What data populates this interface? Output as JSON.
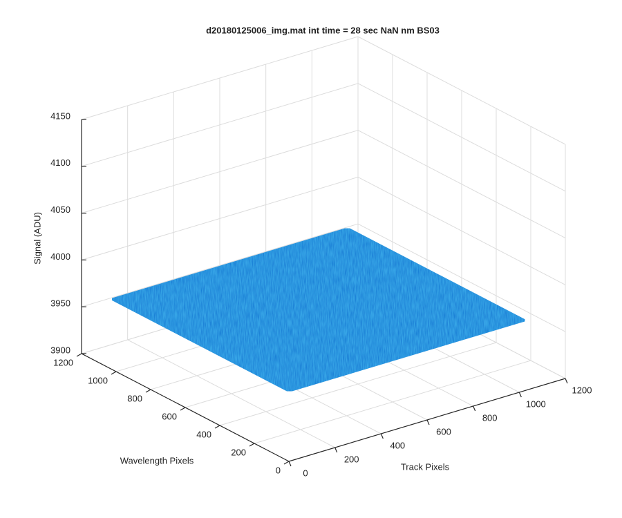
{
  "chart_data": {
    "type": "surface3d",
    "title": "d20180125006_img.mat int time = 28 sec  NaN nm BS03",
    "xlabel": "Track Pixels",
    "ylabel": "Wavelength Pixels",
    "zlabel": "Signal (ADU)",
    "x": [
      0,
      1024
    ],
    "y": [
      0,
      1024
    ],
    "z": [
      [
        3975,
        3975
      ],
      [
        3975,
        3975
      ]
    ],
    "color": "#1a7fd6",
    "xlim": [
      0,
      1200
    ],
    "ylim": [
      0,
      1200
    ],
    "zlim": [
      3900,
      4150
    ],
    "xticks": [
      0,
      200,
      400,
      600,
      800,
      1000,
      1200
    ],
    "yticks": [
      0,
      200,
      400,
      600,
      800,
      1000,
      1200
    ],
    "zticks": [
      3900,
      3950,
      4000,
      4050,
      4100,
      4150
    ],
    "grid": true
  }
}
